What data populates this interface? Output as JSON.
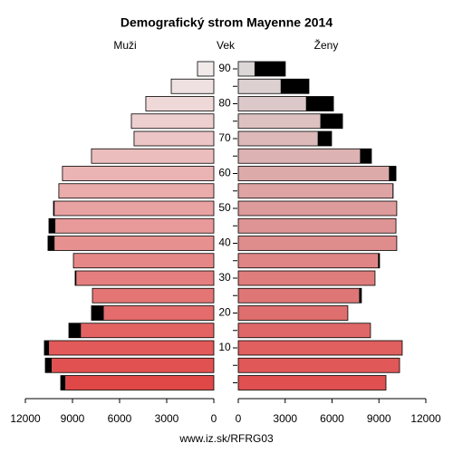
{
  "chart_data": {
    "type": "pyramid",
    "title": "Demografický strom Mayenne 2014",
    "y_label": "Vek",
    "footer": "www.iz.sk/RFRG03",
    "categories": [
      null,
      null,
      10,
      null,
      20,
      null,
      30,
      null,
      40,
      null,
      50,
      null,
      60,
      null,
      70,
      null,
      80,
      null,
      90
    ],
    "series": [
      {
        "name": "Muži",
        "side": "left",
        "values": [
          9750,
          10730,
          10790,
          9230,
          7790,
          7730,
          8830,
          8940,
          10560,
          10500,
          10210,
          9870,
          9640,
          7790,
          5080,
          5250,
          4330,
          2710,
          1040
        ],
        "colors": [
          "#e04848",
          "#e15151",
          "#e25a5a",
          "#e36363",
          "#e46c6c",
          "#e47575",
          "#e57e7e",
          "#e68787",
          "#e79090",
          "#e89999",
          "#e9a2a2",
          "#eaabab",
          "#ebb4b4",
          "#ecbdbd",
          "#ecc6c6",
          "#edcfcf",
          "#eed8d8",
          "#efe1e1",
          "#f0eaea"
        ]
      },
      {
        "name": "Ženy",
        "side": "right",
        "values": [
          9450,
          10320,
          10490,
          8460,
          7010,
          7880,
          8750,
          9040,
          10140,
          10090,
          10140,
          9910,
          10090,
          8520,
          5970,
          6670,
          6090,
          4520,
          3010
        ],
        "colors": [
          "#e05050",
          "#e05858",
          "#e05f5f",
          "#e06767",
          "#df6e6e",
          "#df7676",
          "#df7d7d",
          "#df8585",
          "#de8c8c",
          "#de9494",
          "#de9b9b",
          "#dea3a3",
          "#ddaaaa",
          "#ddb2b2",
          "#ddb9b9",
          "#ddc1c1",
          "#dcc8c8",
          "#dcd0d0",
          "#dcd7d7"
        ]
      }
    ],
    "excess_color": "#000000",
    "xlim": [
      0,
      12000
    ],
    "xticks": [
      0,
      3000,
      6000,
      9000,
      12000
    ]
  }
}
